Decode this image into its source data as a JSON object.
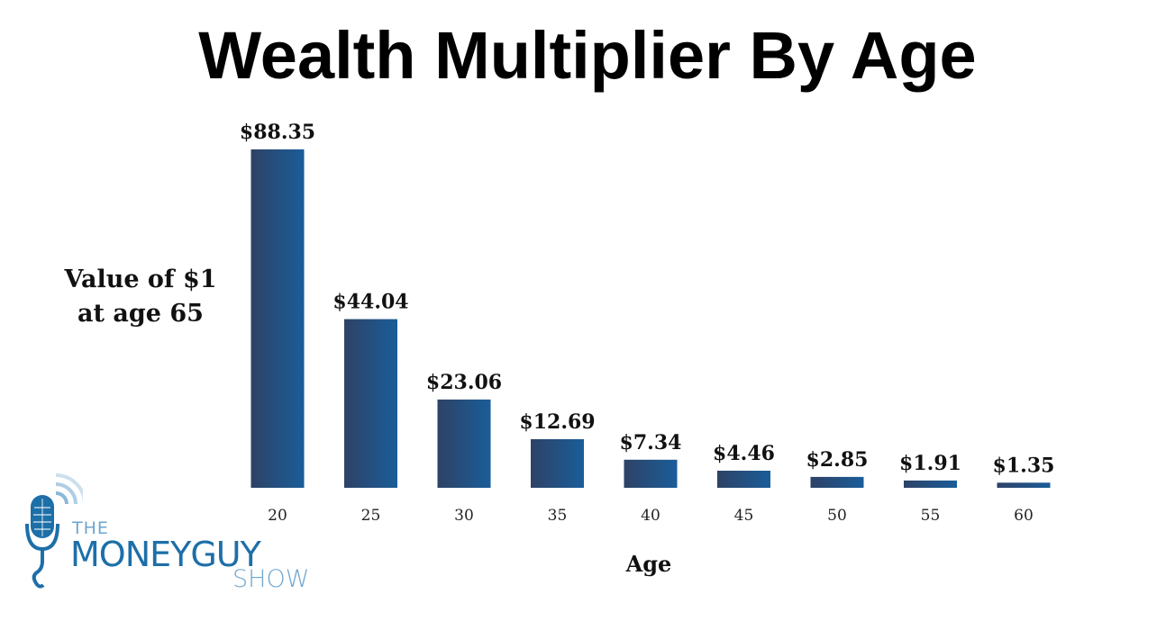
{
  "chart_data": {
    "type": "bar",
    "title": "Wealth Multiplier By Age",
    "xlabel": "Age",
    "ylabel": "Value of $1 at age 65",
    "categories": [
      "20",
      "25",
      "30",
      "35",
      "40",
      "45",
      "50",
      "55",
      "60"
    ],
    "values": [
      88.35,
      44.04,
      23.06,
      12.69,
      7.34,
      4.46,
      2.85,
      1.91,
      1.35
    ],
    "data_labels": [
      "$88.35",
      "$44.04",
      "$23.06",
      "$12.69",
      "$7.34",
      "$4.46",
      "$2.85",
      "$1.91",
      "$1.35"
    ],
    "ylim": [
      0,
      88.35
    ],
    "grid": false,
    "legend": "none",
    "colors": {
      "bar_left": "#2e4266",
      "bar_right": "#1a5d99"
    }
  },
  "logo": {
    "line1": "THE",
    "line2": "MONEYGUY",
    "line3": "SHOW",
    "icon": "microphone-icon",
    "colors": {
      "dark": "#1d6fa8",
      "light": "#6ea6cf"
    }
  }
}
